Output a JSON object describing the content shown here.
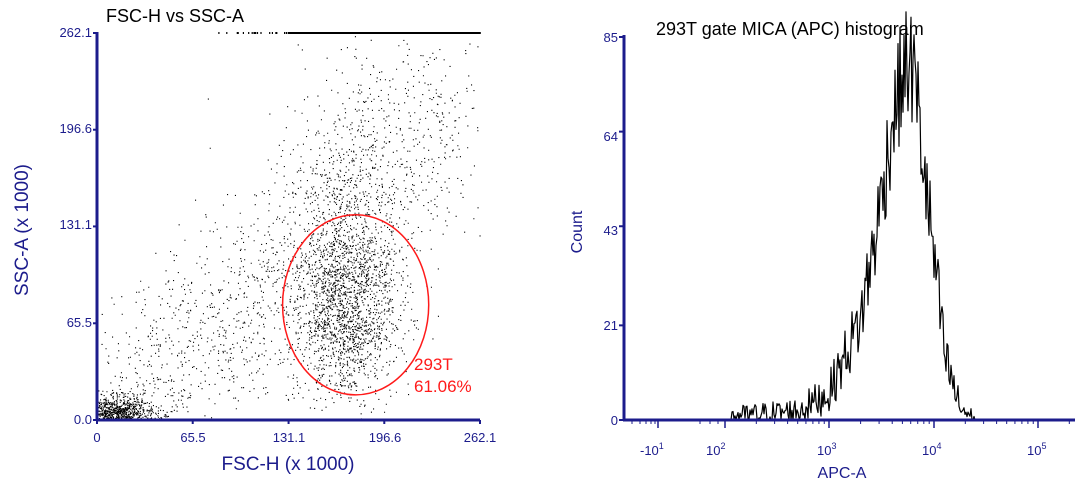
{
  "chart_data": [
    {
      "type": "scatter",
      "title": "FSC-H vs SSC-A",
      "xlabel": "FSC-H (x 1000)",
      "ylabel": "SSC-A (x 1000)",
      "xlim": [
        0,
        262.1
      ],
      "ylim": [
        0,
        262.1
      ],
      "x_ticks": [
        "0",
        "65.5",
        "131.1",
        "196.6",
        "262.1"
      ],
      "y_ticks": [
        "0.0",
        "65.5",
        "131.1",
        "196.6",
        "262.1"
      ],
      "populations": [
        {
          "name": "main cluster",
          "center": [
            170,
            70
          ],
          "spread": [
            18,
            26
          ],
          "approx_events": 5200
        },
        {
          "name": "debris",
          "center": [
            12,
            4
          ],
          "spread": [
            14,
            6
          ],
          "approx_events": 1100
        },
        {
          "name": "diffuse diagonal",
          "approx_events": 1500
        },
        {
          "name": "saturated SSC events",
          "y": 262.1,
          "x_range": [
            130,
            262.1
          ]
        }
      ],
      "gate": {
        "shape": "ellipse",
        "label": "293T",
        "percent": "61.06%",
        "center": [
          177,
          78
        ],
        "x_radius": 50,
        "y_radius": 61,
        "color": "#ff1a1a"
      },
      "grid": false
    },
    {
      "type": "line",
      "title": "293T gate MICA (APC) histogram",
      "xlabel": "APC-A",
      "ylabel": "Count",
      "x_scale": "logicle",
      "ylim": [
        0,
        85
      ],
      "y_ticks": [
        "0",
        "21",
        "43",
        "64",
        "85"
      ],
      "x_ticks": [
        {
          "base": "-10",
          "exp": "1"
        },
        {
          "base": "10",
          "exp": "2"
        },
        {
          "base": "10",
          "exp": "3"
        },
        {
          "base": "10",
          "exp": "4"
        },
        {
          "base": "10",
          "exp": "5"
        }
      ],
      "series": [
        {
          "values": [
            [
              150,
              1
            ],
            [
              500,
              2
            ],
            [
              1000,
              6
            ],
            [
              2000,
              22
            ],
            [
              3000,
              45
            ],
            [
              4000,
              65
            ],
            [
              5000,
              76
            ],
            [
              6000,
              80
            ],
            [
              7000,
              72
            ],
            [
              8000,
              58
            ],
            [
              10000,
              38
            ],
            [
              13000,
              14
            ],
            [
              18000,
              3
            ],
            [
              25000,
              0
            ]
          ]
        }
      ],
      "grid": false
    }
  ]
}
